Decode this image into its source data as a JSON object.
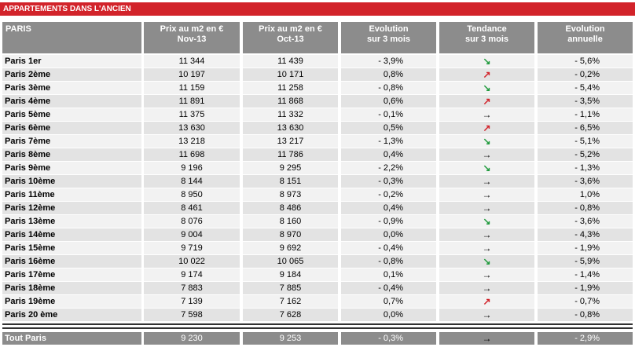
{
  "title": "APPARTEMENTS DANS L'ANCIEN",
  "table": {
    "header": [
      [
        "PARIS"
      ],
      [
        "Prix au m2 en €",
        "Nov-13"
      ],
      [
        "Prix au m2 en €",
        "Oct-13"
      ],
      [
        "Evolution",
        "sur 3 mois"
      ],
      [
        "Tendance",
        "sur 3 mois"
      ],
      [
        "Evolution",
        "annuelle"
      ]
    ],
    "rows": [
      [
        "Paris 1er",
        "11 344",
        "11 439",
        "- 3,9%",
        {
          "symbol": "↘",
          "color": "#1f9a3c"
        },
        "- 5,6%"
      ],
      [
        "Paris 2ème",
        "10 197",
        "10 171",
        "0,8%",
        {
          "symbol": "↗",
          "color": "#d2232a"
        },
        "- 0,2%"
      ],
      [
        "Paris 3ème",
        "11 159",
        "11 258",
        "- 0,8%",
        {
          "symbol": "↘",
          "color": "#1f9a3c"
        },
        "- 5,4%"
      ],
      [
        "Paris 4ème",
        "11 891",
        "11 868",
        "0,6%",
        {
          "symbol": "↗",
          "color": "#d2232a"
        },
        "- 3,5%"
      ],
      [
        "Paris 5ème",
        "11 375",
        "11 332",
        "- 0,1%",
        {
          "symbol": "→",
          "color": "#000000"
        },
        "- 1,1%"
      ],
      [
        "Paris 6ème",
        "13 630",
        "13 630",
        "0,5%",
        {
          "symbol": "↗",
          "color": "#d2232a"
        },
        "- 6,5%"
      ],
      [
        "Paris 7ème",
        "13 218",
        "13 217",
        "- 1,3%",
        {
          "symbol": "↘",
          "color": "#1f9a3c"
        },
        "- 5,1%"
      ],
      [
        "Paris 8ème",
        "11 698",
        "11 786",
        "0,4%",
        {
          "symbol": "→",
          "color": "#000000"
        },
        "- 5,2%"
      ],
      [
        "Paris 9ème",
        "9 196",
        "9 295",
        "- 2,2%",
        {
          "symbol": "↘",
          "color": "#1f9a3c"
        },
        "- 1,3%"
      ],
      [
        "Paris 10ème",
        "8 144",
        "8 151",
        "- 0,3%",
        {
          "symbol": "→",
          "color": "#000000"
        },
        "- 3,6%"
      ],
      [
        "Paris 11ème",
        "8 950",
        "8 973",
        "- 0,2%",
        {
          "symbol": "→",
          "color": "#000000"
        },
        "1,0%"
      ],
      [
        "Paris 12ème",
        "8 461",
        "8 486",
        "0,4%",
        {
          "symbol": "→",
          "color": "#000000"
        },
        "- 0,8%"
      ],
      [
        "Paris 13ème",
        "8 076",
        "8 160",
        "- 0,9%",
        {
          "symbol": "↘",
          "color": "#1f9a3c"
        },
        "- 3,6%"
      ],
      [
        "Paris 14ème",
        "9 004",
        "8 970",
        "0,0%",
        {
          "symbol": "→",
          "color": "#000000"
        },
        "- 4,3%"
      ],
      [
        "Paris 15ème",
        "9 719",
        "9 692",
        "- 0,4%",
        {
          "symbol": "→",
          "color": "#000000"
        },
        "- 1,9%"
      ],
      [
        "Paris 16ème",
        "10 022",
        "10 065",
        "- 0,8%",
        {
          "symbol": "↘",
          "color": "#1f9a3c"
        },
        "- 5,9%"
      ],
      [
        "Paris 17ème",
        "9 174",
        "9 184",
        "0,1%",
        {
          "symbol": "→",
          "color": "#000000"
        },
        "- 1,4%"
      ],
      [
        "Paris 18ème",
        "7 883",
        "7 885",
        "- 0,4%",
        {
          "symbol": "→",
          "color": "#000000"
        },
        "- 1,9%"
      ],
      [
        "Paris 19ème",
        "7 139",
        "7 162",
        "0,7%",
        {
          "symbol": "↗",
          "color": "#d2232a"
        },
        "- 0,7%"
      ],
      [
        "Paris 20 ème",
        "7 598",
        "7 628",
        "0,0%",
        {
          "symbol": "→",
          "color": "#000000"
        },
        "- 0,8%"
      ]
    ],
    "total": [
      "Tout Paris",
      "9 230",
      "9 253",
      "- 0,3%",
      {
        "symbol": "→",
        "color": "#000000"
      },
      "- 2,9%"
    ]
  }
}
